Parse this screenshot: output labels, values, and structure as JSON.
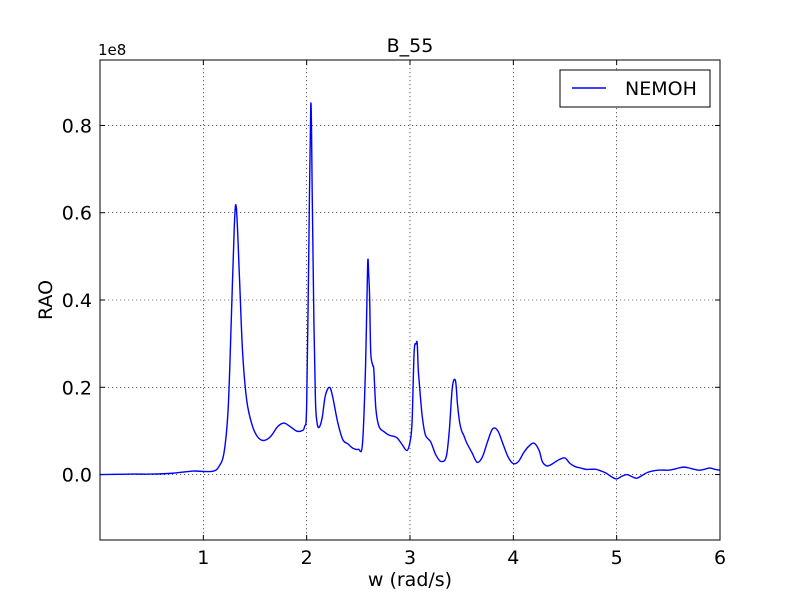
{
  "chart_data": {
    "type": "line",
    "title": "B_55",
    "xlabel": "w (rad/s)",
    "ylabel": "RAO",
    "y_offset_label": "1e8",
    "xlim": [
      0,
      6
    ],
    "ylim": [
      -0.15,
      0.95
    ],
    "x_ticks": [
      1,
      2,
      3,
      4,
      5,
      6
    ],
    "x_tick_labels": [
      "1",
      "2",
      "3",
      "4",
      "5",
      "6"
    ],
    "y_ticks": [
      0.0,
      0.2,
      0.4,
      0.6,
      0.8
    ],
    "y_tick_labels": [
      "0.0",
      "0.2",
      "0.4",
      "0.6",
      "0.8"
    ],
    "grid": true,
    "legend_position": "top-right",
    "series": [
      {
        "name": "NEMOH",
        "color": "#0000ff",
        "x": [
          0.0,
          0.3,
          0.5,
          0.7,
          0.9,
          1.0,
          1.1,
          1.15,
          1.2,
          1.24,
          1.27,
          1.3,
          1.32,
          1.35,
          1.38,
          1.42,
          1.47,
          1.52,
          1.58,
          1.65,
          1.72,
          1.78,
          1.84,
          1.9,
          1.95,
          1.98,
          2.0,
          2.02,
          2.04,
          2.055,
          2.07,
          2.085,
          2.1,
          2.12,
          2.15,
          2.18,
          2.22,
          2.25,
          2.3,
          2.35,
          2.4,
          2.45,
          2.5,
          2.54,
          2.57,
          2.59,
          2.6,
          2.61,
          2.62,
          2.64,
          2.65,
          2.67,
          2.7,
          2.75,
          2.8,
          2.87,
          2.92,
          2.97,
          3.0,
          3.02,
          3.04,
          3.06,
          3.07,
          3.08,
          3.09,
          3.1,
          3.12,
          3.15,
          3.2,
          3.25,
          3.3,
          3.35,
          3.38,
          3.41,
          3.44,
          3.46,
          3.48,
          3.5,
          3.52,
          3.55,
          3.6,
          3.65,
          3.7,
          3.75,
          3.8,
          3.85,
          3.9,
          3.95,
          4.0,
          4.05,
          4.1,
          4.15,
          4.2,
          4.25,
          4.28,
          4.32,
          4.36,
          4.4,
          4.45,
          4.5,
          4.55,
          4.6,
          4.65,
          4.7,
          4.75,
          4.8,
          4.85,
          4.9,
          4.95,
          5.0,
          5.05,
          5.1,
          5.15,
          5.2,
          5.3,
          5.4,
          5.5,
          5.55,
          5.6,
          5.65,
          5.7,
          5.75,
          5.8,
          5.85,
          5.9,
          5.95,
          6.0
        ],
        "y": [
          0.0,
          0.001,
          0.001,
          0.003,
          0.008,
          0.007,
          0.008,
          0.018,
          0.05,
          0.15,
          0.35,
          0.57,
          0.61,
          0.45,
          0.28,
          0.17,
          0.115,
          0.088,
          0.078,
          0.087,
          0.11,
          0.118,
          0.11,
          0.1,
          0.1,
          0.11,
          0.16,
          0.5,
          0.85,
          0.62,
          0.35,
          0.17,
          0.12,
          0.108,
          0.13,
          0.18,
          0.2,
          0.18,
          0.12,
          0.08,
          0.07,
          0.06,
          0.058,
          0.07,
          0.25,
          0.48,
          0.46,
          0.4,
          0.28,
          0.25,
          0.24,
          0.15,
          0.11,
          0.098,
          0.09,
          0.085,
          0.07,
          0.055,
          0.075,
          0.12,
          0.28,
          0.3,
          0.3,
          0.24,
          0.21,
          0.18,
          0.13,
          0.09,
          0.075,
          0.045,
          0.03,
          0.04,
          0.1,
          0.2,
          0.215,
          0.16,
          0.12,
          0.1,
          0.09,
          0.072,
          0.05,
          0.028,
          0.04,
          0.075,
          0.105,
          0.1,
          0.07,
          0.04,
          0.025,
          0.03,
          0.05,
          0.065,
          0.072,
          0.055,
          0.03,
          0.02,
          0.022,
          0.028,
          0.035,
          0.038,
          0.025,
          0.018,
          0.015,
          0.012,
          0.012,
          0.012,
          0.008,
          0.003,
          -0.005,
          -0.01,
          -0.004,
          0.0,
          -0.005,
          -0.008,
          0.005,
          0.01,
          0.01,
          0.012,
          0.015,
          0.017,
          0.015,
          0.012,
          0.01,
          0.012,
          0.015,
          0.012,
          0.01
        ]
      }
    ]
  }
}
